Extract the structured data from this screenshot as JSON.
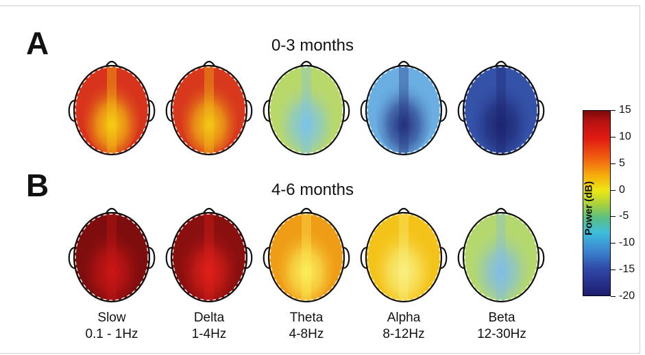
{
  "panels": [
    {
      "letter": "A",
      "title": "0-3 months"
    },
    {
      "letter": "B",
      "title": "4-6 months"
    }
  ],
  "bands": [
    {
      "name": "Slow",
      "range": "0.1 - 1Hz"
    },
    {
      "name": "Delta",
      "range": "1-4Hz"
    },
    {
      "name": "Theta",
      "range": "4-8Hz"
    },
    {
      "name": "Alpha",
      "range": "8-12Hz"
    },
    {
      "name": "Beta",
      "range": "12-30Hz"
    }
  ],
  "colorbar": {
    "label": "Power (dB)",
    "ticks": [
      "15",
      "10",
      "5",
      "0",
      "-5",
      "-10",
      "-15",
      "-20"
    ]
  },
  "colors": {
    "slow_0_3": {
      "base": "#d8341c",
      "hot": "#f6cf12"
    },
    "delta_0_3": {
      "base": "#d8381c",
      "hot": "#f4c814"
    },
    "theta_0_3": {
      "base": "#b9d86a",
      "hot": "#7cc4e8"
    },
    "alpha_0_3": {
      "base": "#6aaee2",
      "hot": "#24307e"
    },
    "beta_0_3": {
      "base": "#3452a8",
      "hot": "#1d2570"
    },
    "slow_4_6": {
      "base": "#7e0d0d",
      "hot": "#cc1616"
    },
    "delta_4_6": {
      "base": "#8a0f0f",
      "hot": "#e0201a"
    },
    "theta_4_6": {
      "base": "#ef9c16",
      "hot": "#fbee5a"
    },
    "alpha_4_6": {
      "base": "#f4c31a",
      "hot": "#f8f080"
    },
    "beta_4_6": {
      "base": "#b4d86e",
      "hot": "#80bde8"
    }
  }
}
